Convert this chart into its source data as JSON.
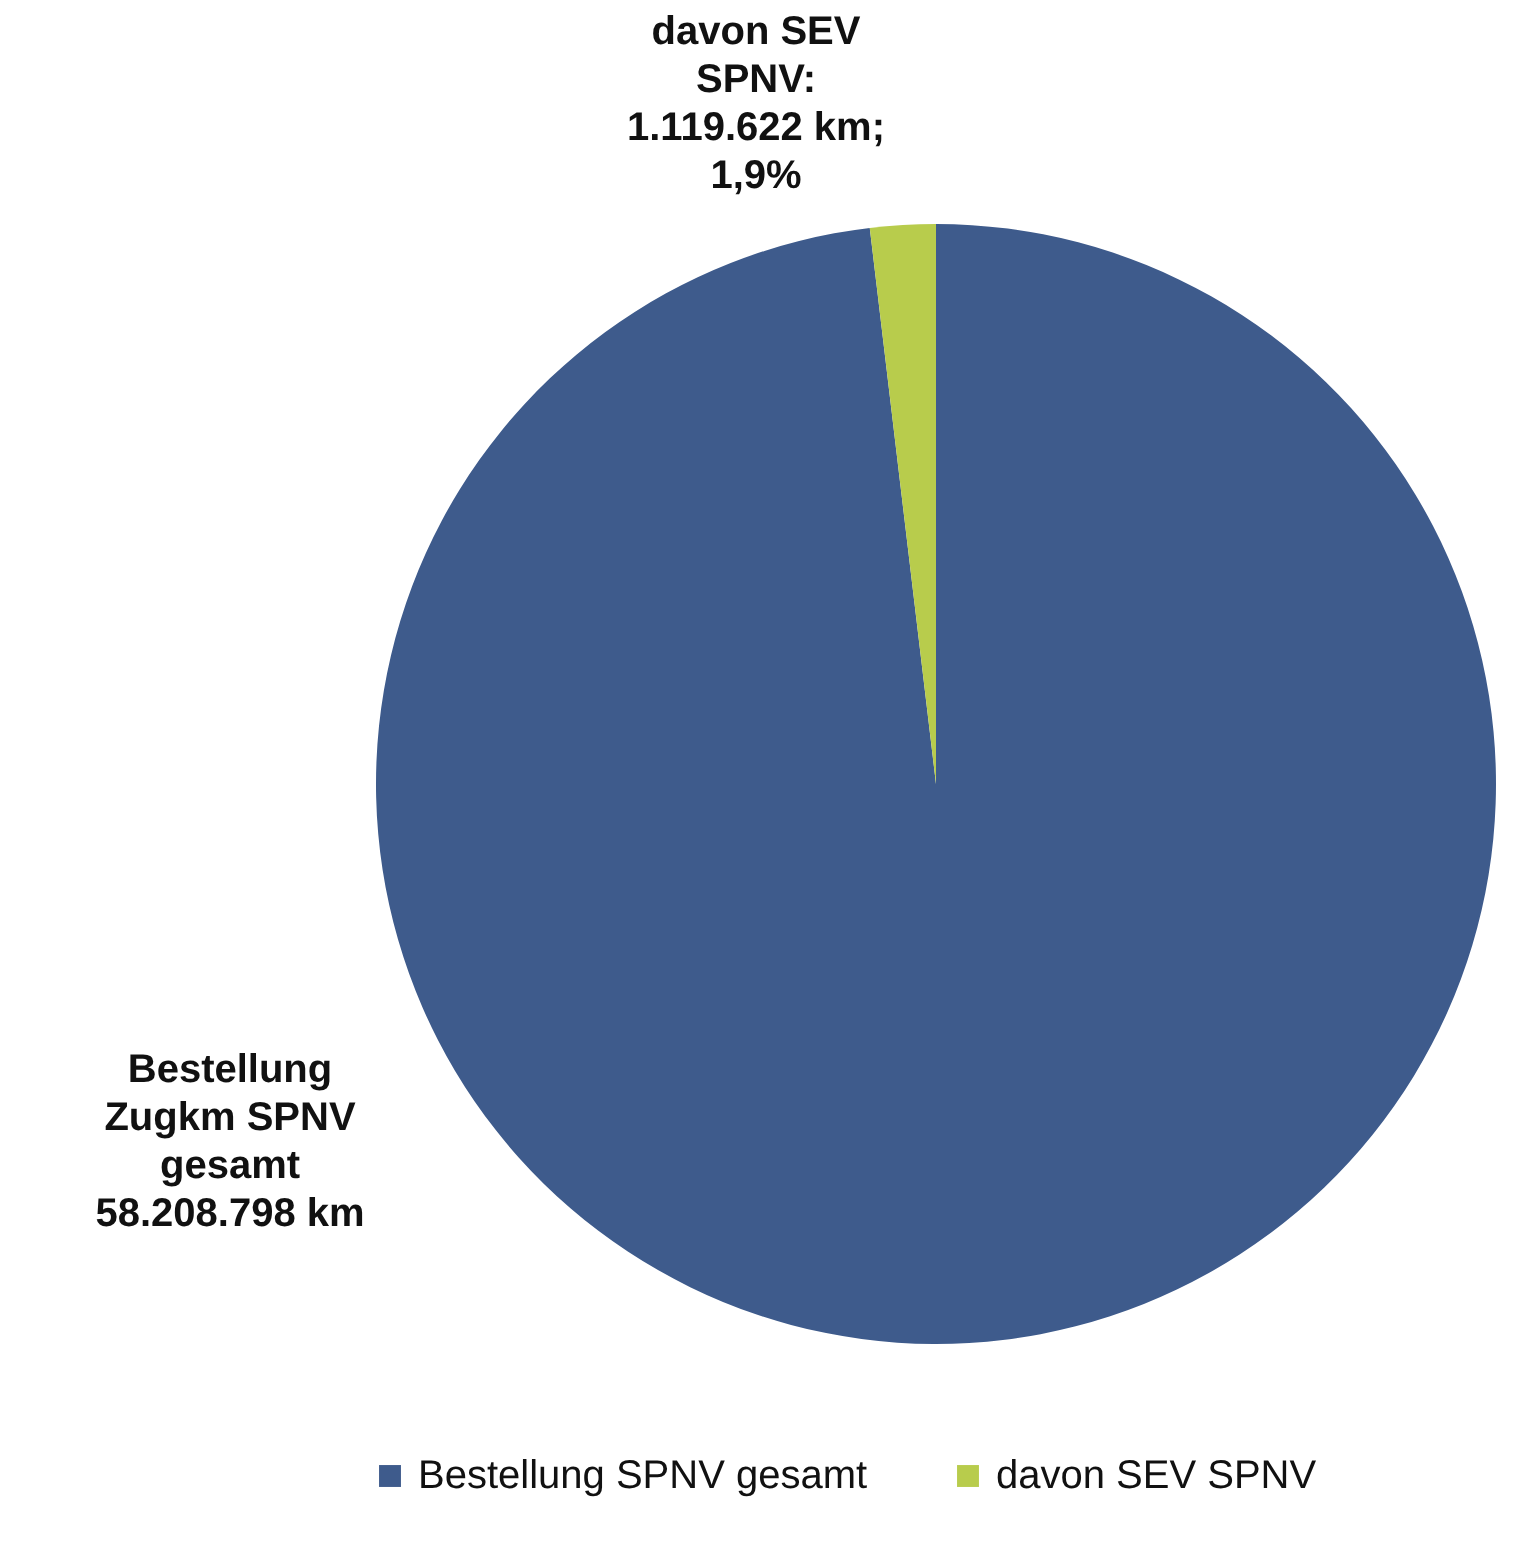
{
  "chart_data": {
    "type": "pie",
    "categories": [
      "Bestellung SPNV gesamt",
      "davon SEV SPNV"
    ],
    "values": [
      58208798,
      1119622
    ],
    "colors": [
      "#3e5b8c",
      "#b8cc4c"
    ],
    "value_labels": [
      "Bestellung Zugkm SPNV gesamt 58.208.798 km",
      "davon SEV SPNV: 1.119.622 km; 1,9%"
    ],
    "legend": "bottom"
  }
}
